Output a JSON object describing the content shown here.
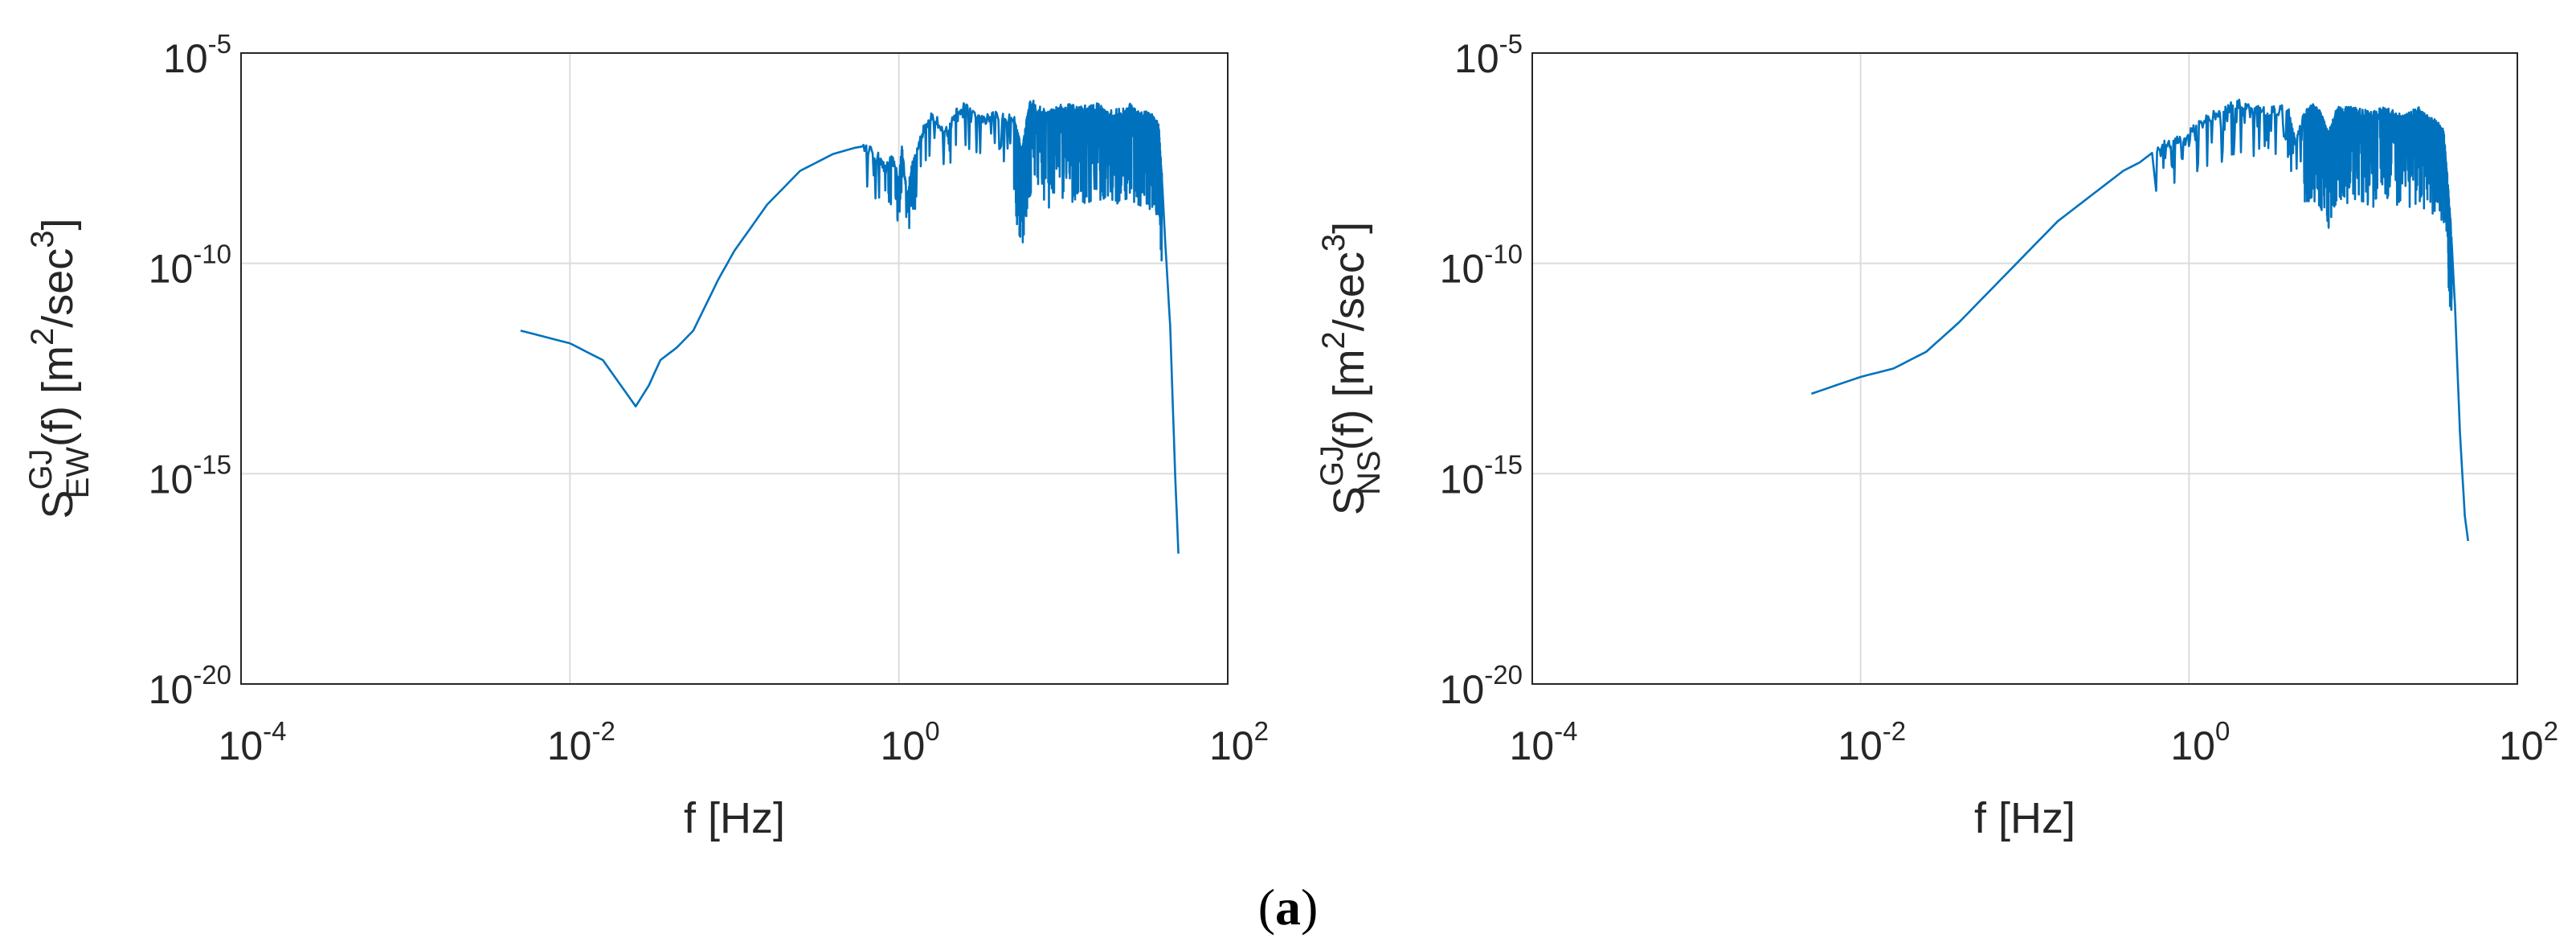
{
  "figure": {
    "caption": "a"
  },
  "chart_data": [
    {
      "type": "line",
      "xlabel": "f [Hz]",
      "ylabel": {
        "base": "S",
        "superscript": "GJ",
        "subscript": "EW",
        "rest": "(f) [m",
        "unit_sup1": "2",
        "unit_mid": "/sec",
        "unit_sup2": "3",
        "close": "]"
      },
      "xscale": "log",
      "yscale": "log",
      "xlim": [
        0.0001,
        100
      ],
      "ylim": [
        1e-20,
        1e-05
      ],
      "grid": true,
      "x_ticks": [
        {
          "base": "10",
          "exp": "-4",
          "value": -4
        },
        {
          "base": "10",
          "exp": "-2",
          "value": -2
        },
        {
          "base": "10",
          "exp": "0",
          "value": 0
        },
        {
          "base": "10",
          "exp": "2",
          "value": 2
        }
      ],
      "y_ticks": [
        {
          "base": "10",
          "exp": "-5",
          "value": -5
        },
        {
          "base": "10",
          "exp": "-10",
          "value": -10
        },
        {
          "base": "10",
          "exp": "-15",
          "value": -15
        },
        {
          "base": "10",
          "exp": "-20",
          "value": -20
        }
      ],
      "color": "#0072bd",
      "series": [
        {
          "log10_x": [
            -2.3,
            -2.0,
            -1.8,
            -1.6,
            -1.52,
            -1.45,
            -1.35,
            -1.25,
            -1.1,
            -1.0,
            -0.8,
            -0.6,
            -0.4,
            -0.22,
            -0.12,
            -0.08,
            -0.05,
            -0.02,
            0.0,
            0.02,
            0.05,
            0.08,
            0.1,
            0.15,
            0.2,
            0.3,
            0.35,
            0.4,
            0.5,
            0.6,
            0.7,
            0.75,
            0.78,
            0.8,
            0.9,
            1.0,
            1.1,
            1.2,
            1.3,
            1.4,
            1.45,
            1.5,
            1.55,
            1.58,
            1.6,
            1.62,
            1.65,
            1.68,
            1.7
          ],
          "log10_y": [
            -11.6,
            -11.9,
            -12.3,
            -13.4,
            -12.9,
            -12.3,
            -12.0,
            -11.6,
            -10.4,
            -9.7,
            -8.6,
            -7.8,
            -7.4,
            -7.2,
            -7.5,
            -7.8,
            -7.5,
            -7.7,
            -8.0,
            -7.3,
            -8.4,
            -7.7,
            -7.5,
            -6.8,
            -6.5,
            -6.9,
            -6.4,
            -6.3,
            -6.6,
            -6.5,
            -6.6,
            -7.4,
            -6.6,
            -6.2,
            -6.5,
            -6.3,
            -6.4,
            -6.3,
            -6.5,
            -6.3,
            -6.5,
            -6.5,
            -6.6,
            -6.8,
            -8.0,
            -9.5,
            -11.5,
            -15.0,
            -16.9
          ]
        }
      ]
    },
    {
      "type": "line",
      "xlabel": "f [Hz]",
      "ylabel": {
        "base": "S",
        "superscript": "GJ",
        "subscript": "NS",
        "rest": "(f) [m",
        "unit_sup1": "2",
        "unit_mid": "/sec",
        "unit_sup2": "3",
        "close": "]"
      },
      "xscale": "log",
      "yscale": "log",
      "xlim": [
        0.0001,
        100
      ],
      "ylim": [
        1e-20,
        1e-05
      ],
      "grid": true,
      "x_ticks": [
        {
          "base": "10",
          "exp": "-4",
          "value": -4
        },
        {
          "base": "10",
          "exp": "-2",
          "value": -2
        },
        {
          "base": "10",
          "exp": "0",
          "value": 0
        },
        {
          "base": "10",
          "exp": "2",
          "value": 2
        }
      ],
      "y_ticks": [
        {
          "base": "10",
          "exp": "-5",
          "value": -5
        },
        {
          "base": "10",
          "exp": "-10",
          "value": -10
        },
        {
          "base": "10",
          "exp": "-15",
          "value": -15
        },
        {
          "base": "10",
          "exp": "-20",
          "value": -20
        }
      ],
      "color": "#0072bd",
      "series": [
        {
          "log10_x": [
            -2.3,
            -2.0,
            -1.8,
            -1.6,
            -1.4,
            -1.2,
            -1.0,
            -0.8,
            -0.6,
            -0.4,
            -0.3,
            -0.2,
            -0.1,
            0.0,
            0.1,
            0.2,
            0.3,
            0.4,
            0.5,
            0.6,
            0.65,
            0.7,
            0.75,
            0.8,
            0.85,
            0.9,
            1.0,
            1.1,
            1.2,
            1.3,
            1.4,
            1.45,
            1.5,
            1.55,
            1.58,
            1.6,
            1.62,
            1.65,
            1.68,
            1.7
          ],
          "log10_y": [
            -13.1,
            -12.7,
            -12.5,
            -12.1,
            -11.4,
            -10.6,
            -9.8,
            -9.0,
            -8.4,
            -7.8,
            -7.6,
            -7.3,
            -7.1,
            -6.9,
            -6.6,
            -6.4,
            -6.2,
            -6.3,
            -6.4,
            -6.3,
            -7.2,
            -6.5,
            -6.3,
            -6.5,
            -7.0,
            -6.4,
            -6.4,
            -6.5,
            -6.4,
            -6.6,
            -6.4,
            -6.6,
            -6.7,
            -6.9,
            -8.3,
            -9.5,
            -11.0,
            -14.0,
            -16.0,
            -16.6
          ]
        }
      ]
    }
  ]
}
